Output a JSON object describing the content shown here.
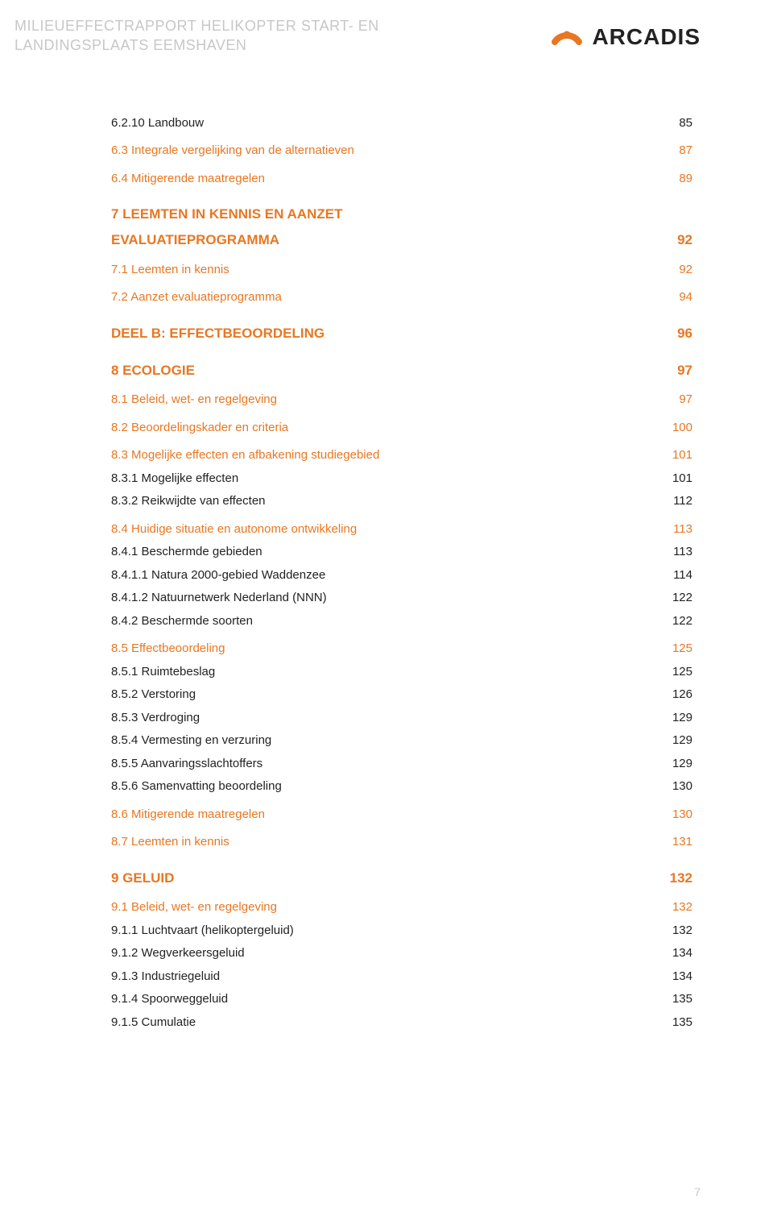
{
  "header": {
    "title_line1": "MILIEUEFFECTRAPPORT HELIKOPTER START- EN",
    "title_line2": "LANDINGSPLAATS EEMSHAVEN",
    "logo_text": "ARCADIS",
    "logo_orange": "#e87722",
    "logo_black": "#1a1a1a"
  },
  "colors": {
    "muted": "#c7c7c7",
    "accent": "#e87722",
    "text": "#222222",
    "bg": "#ffffff"
  },
  "toc": [
    {
      "label": "6.2.10 Landbouw",
      "page": "85",
      "cls": "lvl-h2-black",
      "gap": ""
    },
    {
      "label": "6.3 Integrale vergelijking van de alternatieven",
      "page": "87",
      "cls": "lvl-h2-orange",
      "gap": "gap-sm"
    },
    {
      "label": "6.4 Mitigerende maatregelen",
      "page": "89",
      "cls": "lvl-h2-orange",
      "gap": "gap-sm"
    },
    {
      "label": "7 LEEMTEN IN KENNIS EN AANZET",
      "page": "",
      "cls": "lvl-h1-orange",
      "gap": "gap-md"
    },
    {
      "label": "EVALUATIEPROGRAMMA",
      "page": "92",
      "cls": "lvl-h1-orange",
      "gap": ""
    },
    {
      "label": "7.1 Leemten in kennis",
      "page": "92",
      "cls": "lvl-h2-orange",
      "gap": "gap-sm"
    },
    {
      "label": "7.2 Aanzet evaluatieprogramma",
      "page": "94",
      "cls": "lvl-h2-orange",
      "gap": "gap-sm"
    },
    {
      "label": "DEEL B: EFFECTBEOORDELING",
      "page": "96",
      "cls": "lvl-h1-orange",
      "gap": "gap-md"
    },
    {
      "label": "8 ECOLOGIE",
      "page": "97",
      "cls": "lvl-h1-orange",
      "gap": "gap-md"
    },
    {
      "label": "8.1 Beleid, wet- en regelgeving",
      "page": "97",
      "cls": "lvl-h2-orange",
      "gap": "gap-sm"
    },
    {
      "label": "8.2 Beoordelingskader en criteria",
      "page": "100",
      "cls": "lvl-h2-orange",
      "gap": "gap-sm"
    },
    {
      "label": "8.3 Mogelijke effecten en afbakening studiegebied",
      "page": "101",
      "cls": "lvl-h2-orange",
      "gap": "gap-sm"
    },
    {
      "label": "8.3.1 Mogelijke effecten",
      "page": "101",
      "cls": "lvl-h3-black",
      "gap": ""
    },
    {
      "label": "8.3.2 Reikwijdte van effecten",
      "page": "112",
      "cls": "lvl-h3-black",
      "gap": ""
    },
    {
      "label": "8.4 Huidige situatie en autonome ontwikkeling",
      "page": "113",
      "cls": "lvl-h2-orange",
      "gap": "gap-sm"
    },
    {
      "label": "8.4.1 Beschermde gebieden",
      "page": "113",
      "cls": "lvl-h3-black",
      "gap": ""
    },
    {
      "label": "8.4.1.1 Natura 2000-gebied Waddenzee",
      "page": "114",
      "cls": "lvl-h3-black",
      "gap": ""
    },
    {
      "label": "8.4.1.2 Natuurnetwerk Nederland (NNN)",
      "page": "122",
      "cls": "lvl-h3-black",
      "gap": ""
    },
    {
      "label": "8.4.2 Beschermde soorten",
      "page": "122",
      "cls": "lvl-h3-black",
      "gap": ""
    },
    {
      "label": "8.5 Effectbeoordeling",
      "page": "125",
      "cls": "lvl-h2-orange",
      "gap": "gap-sm"
    },
    {
      "label": "8.5.1 Ruimtebeslag",
      "page": "125",
      "cls": "lvl-h3-black",
      "gap": ""
    },
    {
      "label": "8.5.2 Verstoring",
      "page": "126",
      "cls": "lvl-h3-black",
      "gap": ""
    },
    {
      "label": "8.5.3 Verdroging",
      "page": "129",
      "cls": "lvl-h3-black",
      "gap": ""
    },
    {
      "label": "8.5.4 Vermesting en verzuring",
      "page": "129",
      "cls": "lvl-h3-black",
      "gap": ""
    },
    {
      "label": "8.5.5 Aanvaringsslachtoffers",
      "page": "129",
      "cls": "lvl-h3-black",
      "gap": ""
    },
    {
      "label": "8.5.6 Samenvatting beoordeling",
      "page": "130",
      "cls": "lvl-h3-black",
      "gap": ""
    },
    {
      "label": "8.6 Mitigerende maatregelen",
      "page": "130",
      "cls": "lvl-h2-orange",
      "gap": "gap-sm"
    },
    {
      "label": "8.7 Leemten in kennis",
      "page": "131",
      "cls": "lvl-h2-orange",
      "gap": "gap-sm"
    },
    {
      "label": "9 GELUID",
      "page": "132",
      "cls": "lvl-h1-orange",
      "gap": "gap-md"
    },
    {
      "label": "9.1 Beleid, wet- en regelgeving",
      "page": "132",
      "cls": "lvl-h2-orange",
      "gap": "gap-sm"
    },
    {
      "label": "9.1.1 Luchtvaart (helikoptergeluid)",
      "page": "132",
      "cls": "lvl-h3-black",
      "gap": ""
    },
    {
      "label": "9.1.2 Wegverkeersgeluid",
      "page": "134",
      "cls": "lvl-h3-black",
      "gap": ""
    },
    {
      "label": "9.1.3 Industriegeluid",
      "page": "134",
      "cls": "lvl-h3-black",
      "gap": ""
    },
    {
      "label": "9.1.4 Spoorweggeluid",
      "page": "135",
      "cls": "lvl-h3-black",
      "gap": ""
    },
    {
      "label": "9.1.5 Cumulatie",
      "page": "135",
      "cls": "lvl-h3-black",
      "gap": ""
    }
  ],
  "page_number": "7"
}
